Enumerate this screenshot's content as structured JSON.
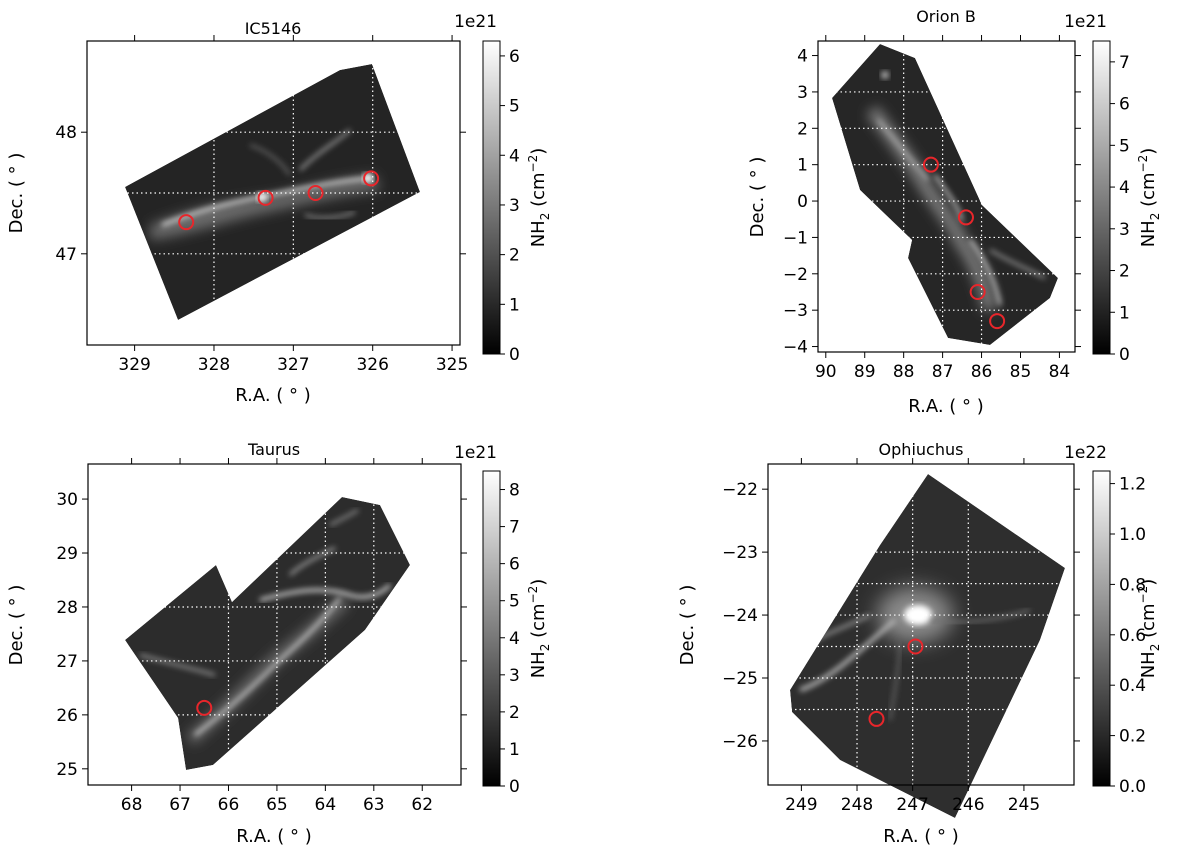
{
  "chart_data": [
    {
      "type": "heatmap",
      "title": "IC5146",
      "xlabel": "R.A. ( ° )",
      "ylabel": "Dec. ( ° )",
      "xlim": [
        329.6,
        324.9
      ],
      "ylim": [
        46.25,
        48.75
      ],
      "x_ticks": [
        329,
        328,
        327,
        326,
        325
      ],
      "y_ticks": [
        47,
        48
      ],
      "grid_x": [
        328,
        327,
        326
      ],
      "grid_y": [
        47,
        47.5,
        48
      ],
      "colorbar": {
        "label": "NH",
        "label_sub": "2",
        "label_unit": " (cm",
        "label_sup": "−2",
        "label_end": ")",
        "exponent": "1e21",
        "range": [
          0,
          6.3
        ],
        "ticks": [
          "0",
          "1",
          "2",
          "3",
          "4",
          "5",
          "6"
        ],
        "tick_values": [
          0,
          1,
          2,
          3,
          4,
          5,
          6
        ]
      },
      "markers": [
        {
          "ra": 328.35,
          "dec": 47.26
        },
        {
          "ra": 327.35,
          "dec": 47.46
        },
        {
          "ra": 326.72,
          "dec": 47.5
        },
        {
          "ra": 326.02,
          "dec": 47.62
        }
      ]
    },
    {
      "type": "heatmap",
      "title": "Orion B",
      "xlabel": "R.A. ( ° )",
      "ylabel": "Dec. ( ° )",
      "xlim": [
        90.2,
        83.6
      ],
      "ylim": [
        -4.15,
        4.4
      ],
      "x_ticks": [
        90,
        89,
        88,
        87,
        86,
        85,
        84
      ],
      "y_ticks": [
        -4,
        -3,
        -2,
        -1,
        0,
        1,
        2,
        3,
        4
      ],
      "x_tick_labels": [
        "90",
        "89",
        "88",
        "87",
        "86",
        "85",
        "84"
      ],
      "y_tick_labels": [
        "−4",
        "−3",
        "−2",
        "−1",
        "0",
        "1",
        "2",
        "3",
        "4"
      ],
      "grid_x": [
        88,
        87,
        86
      ],
      "grid_y": [
        -3,
        -2,
        -1,
        0,
        1,
        2,
        3
      ],
      "colorbar": {
        "label": "NH",
        "label_sub": "2",
        "label_unit": " (cm",
        "label_sup": "−2",
        "label_end": ")",
        "exponent": "1e21",
        "range": [
          0,
          7.5
        ],
        "ticks": [
          "0",
          "1",
          "2",
          "3",
          "4",
          "5",
          "6",
          "7"
        ],
        "tick_values": [
          0,
          1,
          2,
          3,
          4,
          5,
          6,
          7
        ]
      },
      "markers": [
        {
          "ra": 87.3,
          "dec": 1.0
        },
        {
          "ra": 86.4,
          "dec": -0.45
        },
        {
          "ra": 86.1,
          "dec": -2.5
        },
        {
          "ra": 85.6,
          "dec": -3.3
        }
      ]
    },
    {
      "type": "heatmap",
      "title": "Taurus",
      "xlabel": "R.A. ( ° )",
      "ylabel": "Dec. ( ° )",
      "xlim": [
        68.9,
        61.2
      ],
      "ylim": [
        24.7,
        30.65
      ],
      "x_ticks": [
        68,
        67,
        66,
        65,
        64,
        63,
        62
      ],
      "y_ticks": [
        25,
        26,
        27,
        28,
        29,
        30
      ],
      "grid_x": [
        66,
        65,
        64,
        63
      ],
      "grid_y": [
        26,
        27,
        28,
        29
      ],
      "colorbar": {
        "label": "NH",
        "label_sub": "2",
        "label_unit": " (cm",
        "label_sup": "−2",
        "label_end": ")",
        "exponent": "1e21",
        "range": [
          0,
          8.5
        ],
        "ticks": [
          "0",
          "1",
          "2",
          "3",
          "4",
          "5",
          "6",
          "7",
          "8"
        ],
        "tick_values": [
          0,
          1,
          2,
          3,
          4,
          5,
          6,
          7,
          8
        ]
      },
      "markers": [
        {
          "ra": 66.5,
          "dec": 26.13
        }
      ]
    },
    {
      "type": "heatmap",
      "title": "Ophiuchus",
      "xlabel": "R.A. ( ° )",
      "ylabel": "Dec. ( ° )",
      "xlim": [
        249.6,
        244.1
      ],
      "ylim": [
        -26.7,
        -21.6
      ],
      "x_ticks": [
        249,
        248,
        247,
        246,
        245
      ],
      "y_ticks": [
        -26,
        -25,
        -24,
        -23,
        -22
      ],
      "y_tick_labels": [
        "−26",
        "−25",
        "−24",
        "−23",
        "−22"
      ],
      "grid_x": [
        248,
        247,
        246
      ],
      "grid_y": [
        -25.5,
        -25,
        -24.5,
        -24,
        -23.5,
        -23
      ],
      "colorbar": {
        "label": "NH",
        "label_sub": "2",
        "label_unit": " (cm",
        "label_sup": "−2",
        "label_end": ")",
        "exponent": "1e22",
        "range": [
          0,
          1.25
        ],
        "ticks": [
          "0.0",
          "0.2",
          "0.4",
          "0.6",
          "0.8",
          "1.0",
          "1.2"
        ],
        "tick_values": [
          0,
          0.2,
          0.4,
          0.6,
          0.8,
          1.0,
          1.2
        ]
      },
      "markers": [
        {
          "ra": 246.95,
          "dec": -24.5
        },
        {
          "ra": 247.65,
          "dec": -25.65
        }
      ]
    }
  ]
}
